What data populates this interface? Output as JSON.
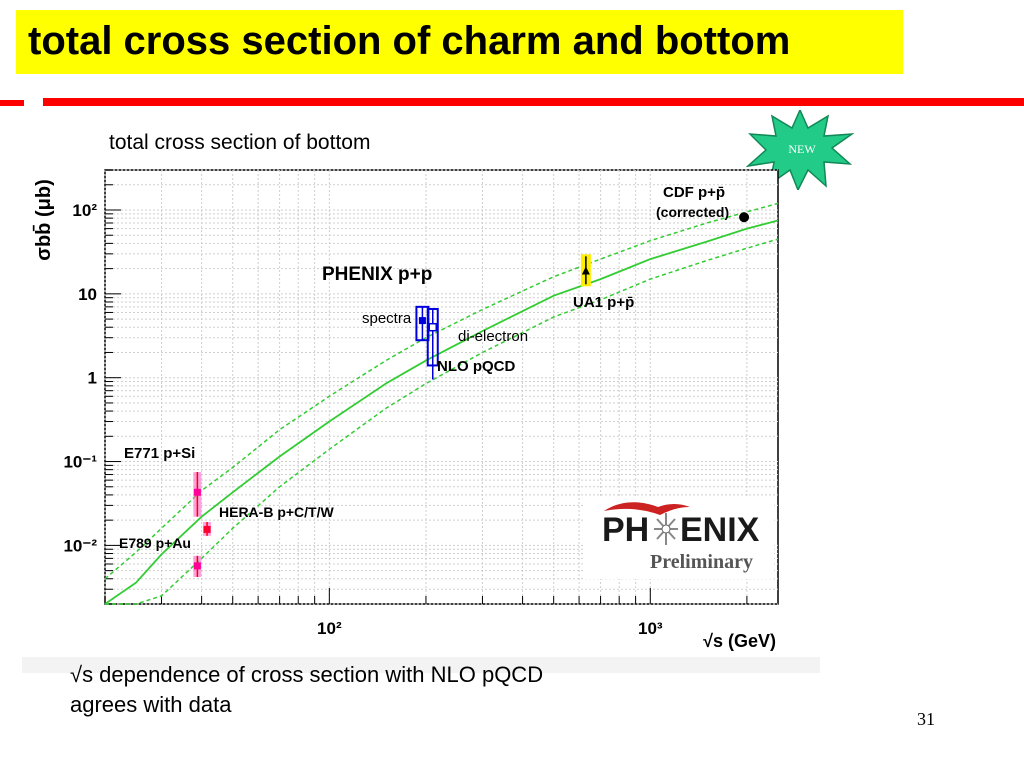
{
  "slide": {
    "title": "total cross section of charm and bottom",
    "subtitle": "total cross section of bottom",
    "badge": "NEW",
    "caption_line1": "√s dependence of cross section with NLO pQCD",
    "caption_line2": "agrees with data",
    "page_number": "31",
    "colors": {
      "title_bg": "#ffff00",
      "rule": "#ff0000",
      "badge": "#22cc88"
    }
  },
  "logo": {
    "part1": "PH",
    "part2": "ENIX",
    "preliminary": "Preliminary"
  },
  "chart_data": {
    "type": "scatter",
    "x_scale": "log",
    "y_scale": "log",
    "xlim": [
      20,
      2500
    ],
    "ylim": [
      0.002,
      300
    ],
    "grid": true,
    "xlabel": "√s (GeV)",
    "ylabel": "σbb̄ (μb)",
    "x_ticks": [
      {
        "value": 100,
        "label": "10²"
      },
      {
        "value": 1000,
        "label": "10³"
      }
    ],
    "y_ticks": [
      {
        "value": 100,
        "label": "10²"
      },
      {
        "value": 10,
        "label": "10"
      },
      {
        "value": 1,
        "label": "1"
      },
      {
        "value": 0.1,
        "label": "10⁻¹"
      },
      {
        "value": 0.01,
        "label": "10⁻²"
      }
    ],
    "series": [
      {
        "name": "CDF p+p̄ (corrected)",
        "points": [
          {
            "x": 1960,
            "y": 82
          }
        ],
        "color": "#000000"
      },
      {
        "name": "UA1 p+p̄",
        "points": [
          {
            "x": 630,
            "y": 19,
            "ylo": 13,
            "yhi": 28
          }
        ],
        "color": "#000000"
      },
      {
        "name": "PHENIX p+p spectra",
        "points": [
          {
            "x": 195,
            "y": 4.8,
            "ylo": 2.8,
            "yhi": 7.0
          }
        ],
        "color": "#0000dd"
      },
      {
        "name": "PHENIX p+p di-electron",
        "points": [
          {
            "x": 210,
            "y": 4.0,
            "ylo": 1.4,
            "yhi": 6.6
          }
        ],
        "color": "#0000dd"
      },
      {
        "name": "E771 p+Si",
        "points": [
          {
            "x": 38.8,
            "y": 0.043,
            "ylo": 0.022,
            "yhi": 0.075
          }
        ],
        "color": "#ff0099"
      },
      {
        "name": "HERA-B p+C/T/W",
        "points": [
          {
            "x": 41.6,
            "y": 0.0155,
            "ylo": 0.013,
            "yhi": 0.019
          }
        ],
        "color": "#ff0033"
      },
      {
        "name": "E789 p+Au",
        "points": [
          {
            "x": 38.8,
            "y": 0.0057,
            "ylo": 0.0042,
            "yhi": 0.0075
          }
        ],
        "color": "#ff0099"
      }
    ],
    "curves": {
      "name": "NLO pQCD",
      "color": "#33cc33",
      "x": [
        20,
        25,
        30,
        40,
        50,
        70,
        100,
        150,
        200,
        300,
        500,
        700,
        1000,
        1500,
        2000,
        2500
      ],
      "central": [
        0.0014,
        0.0036,
        0.0078,
        0.022,
        0.043,
        0.115,
        0.3,
        0.85,
        1.6,
        3.6,
        9.5,
        15,
        26,
        42,
        60,
        75
      ],
      "upper": [
        0.004,
        0.0083,
        0.016,
        0.045,
        0.085,
        0.24,
        0.6,
        1.6,
        3.0,
        6.5,
        16,
        26,
        43,
        70,
        95,
        120
      ],
      "lower": [
        0.0008,
        0.0013,
        0.0025,
        0.007,
        0.016,
        0.05,
        0.14,
        0.43,
        0.85,
        2.0,
        5.3,
        8.5,
        15,
        25,
        35,
        45
      ]
    },
    "annotations": {
      "cdf": "CDF p+p̄",
      "cdf_sub": "(corrected)",
      "ua1": "UA1 p+p̄",
      "phenix": "PHENIX p+p",
      "spectra": "spectra",
      "dielectron": "di-electron",
      "nlo": "NLO pQCD",
      "e771": "E771 p+Si",
      "herab": "HERA-B p+C/T/W",
      "e789": "E789 p+Au"
    }
  }
}
